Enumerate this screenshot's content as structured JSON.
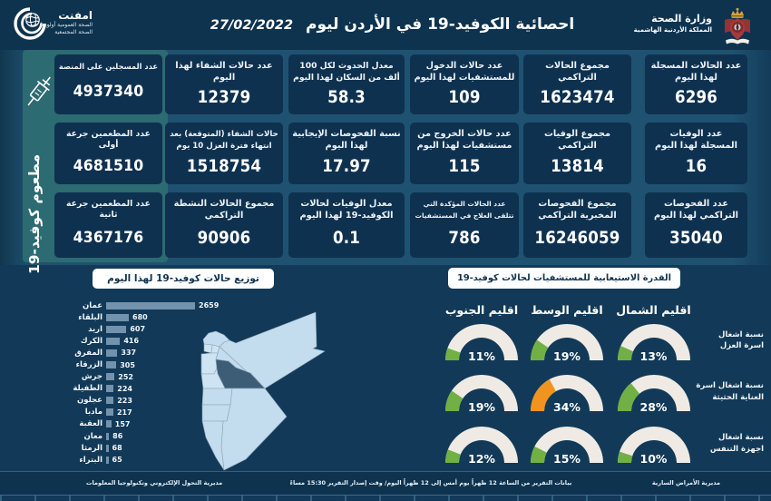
{
  "colors": {
    "canvas": "#123a58",
    "band": "#0e334f",
    "grid_background": "#1f5270",
    "card": "#0e3150",
    "vaccine_panel_teal": "#2c6b71",
    "pill_background": "#ffffff",
    "pill_text": "#0f3350",
    "bar": "#7292ae",
    "map_fill": "#c8dff0",
    "map_highlight": "#40607b",
    "gauge_track": "#efebe4",
    "gauge_ok": "#71b044",
    "gauge_warn": "#f1931f",
    "text": "#ffffff"
  },
  "header": {
    "title": "احصائية الكوفيد-19 في الأردن ليوم",
    "date": "27/02/2022",
    "network_logo": {
      "name": "امفنت",
      "line2": "الصحة العمومية أولويتنا",
      "line3": "الصحة المجتمعية"
    },
    "ministry": {
      "name": "وزارة الصحة",
      "country": "المملكة الأردنية الهاشمية"
    }
  },
  "vaccination": {
    "side_label": "مطعوم كوفيد-19",
    "cards": [
      {
        "label": "عدد المسجلين على المنصة",
        "value": "4937340"
      },
      {
        "label": "عدد المطعمين جرعة\nأولى",
        "value": "4681510"
      },
      {
        "label": "عدد المطعمين جرعة\nثانية",
        "value": "4367176"
      }
    ]
  },
  "stats_columns": [
    {
      "cards": [
        {
          "label": "عدد الحالات المسجلة\nلهذا اليوم",
          "value": "6296"
        },
        {
          "label": "عدد الوفيات\nالمسجلة لهذا اليوم",
          "value": "16"
        },
        {
          "label": "عدد الفحوصات\nالتراكمي لهذا اليوم",
          "value": "35040"
        }
      ]
    },
    {
      "cards": [
        {
          "label": "مجموع الحالات\nالتراكمي",
          "value": "1623474"
        },
        {
          "label": "مجموع الوفيات\nالتراكمي",
          "value": "13814"
        },
        {
          "label": "مجموع الفحوصات\nالمخبرية التراكمي",
          "value": "16246059"
        }
      ]
    },
    {
      "cards": [
        {
          "label": "عدد حالات الدخول\nللمستشفيات لهذا اليوم",
          "value": "109"
        },
        {
          "label": "عدد حالات الخروج من\nمستشفيات لهذا اليوم",
          "value": "115"
        },
        {
          "label": "عدد الحالات المؤكدة التي\nتتلقى العلاج في المستشفيات",
          "value": "786"
        }
      ]
    },
    {
      "cards": [
        {
          "label": "معدل الحدوث لكل 100\nألف من السكان لهذا اليوم",
          "value": "58.3"
        },
        {
          "label": "نسبة الفحوصات الإيجابية\nلهذا اليوم",
          "value": "17.97"
        },
        {
          "label": "معدل الوفيات لحالات\nالكوفيد-19 لهذا اليوم",
          "value": "0.1"
        }
      ]
    },
    {
      "cards": [
        {
          "label": "عدد حالات الشفاء لهذا\nاليوم",
          "value": "12379"
        },
        {
          "label": "حالات الشفاء (المتوقعة) بعد\nانتهاء فترة العزل 10 يوم",
          "value": "1518754"
        },
        {
          "label": "مجموع الحالات النشطة\nالتراكمي",
          "value": "90906"
        }
      ]
    }
  ],
  "chart_data": [
    {
      "type": "bar",
      "title": "توزيع حالات كوفيد-19 لهذا اليوم",
      "orientation": "horizontal",
      "categories": [
        "عمان",
        "البلقاء",
        "اربد",
        "الكرك",
        "المفرق",
        "الزرقاء",
        "جرش",
        "الطفيلة",
        "عجلون",
        "مادبا",
        "العقبة",
        "معان",
        "الرمثا",
        "البتراء"
      ],
      "values": [
        2659,
        680,
        607,
        416,
        337,
        305,
        252,
        224,
        223,
        217,
        157,
        86,
        68,
        65
      ],
      "xlim": [
        0,
        2659
      ],
      "bar_color": "#7292ae",
      "value_labels": true,
      "grid": false,
      "legend": false
    },
    {
      "type": "table",
      "title": "القدرة الاستيعابية للمستشفيات لحالات كوفيد-19",
      "subtype": "semi-circular gauges (%)",
      "columns": [
        "اقليم الشمال",
        "اقليم الوسط",
        "اقليم الجنوب"
      ],
      "rows": [
        {
          "label_line1": "نسبة اشغال",
          "label_line2": "اسرة العزل",
          "values": [
            {
              "pct": 13,
              "state": "ok"
            },
            {
              "pct": 19,
              "state": "ok"
            },
            {
              "pct": 11,
              "state": "ok"
            }
          ]
        },
        {
          "label_line1": "نسبة اشغال اسرة",
          "label_line2": "العناية الحثيثة",
          "values": [
            {
              "pct": 28,
              "state": "ok"
            },
            {
              "pct": 34,
              "state": "warn"
            },
            {
              "pct": 19,
              "state": "ok"
            }
          ]
        },
        {
          "label_line1": "نسبة اشغال",
          "label_line2": "اجهزة التنفس",
          "values": [
            {
              "pct": 10,
              "state": "ok"
            },
            {
              "pct": 15,
              "state": "ok"
            },
            {
              "pct": 12,
              "state": "ok"
            }
          ]
        }
      ]
    }
  ],
  "map": {
    "highlighted_governorate": "عمان"
  },
  "footer": {
    "right": "مديرية الأمراض السارية",
    "center": "بيانات التقرير من الساعة 12 ظهراً يوم أمس إلى 12 ظهراً اليوم/ وقت إصدار التقرير 15:30 مساءً",
    "left": "مديرية التحول الإلكتروني وتكنولوجيا المعلومات"
  }
}
